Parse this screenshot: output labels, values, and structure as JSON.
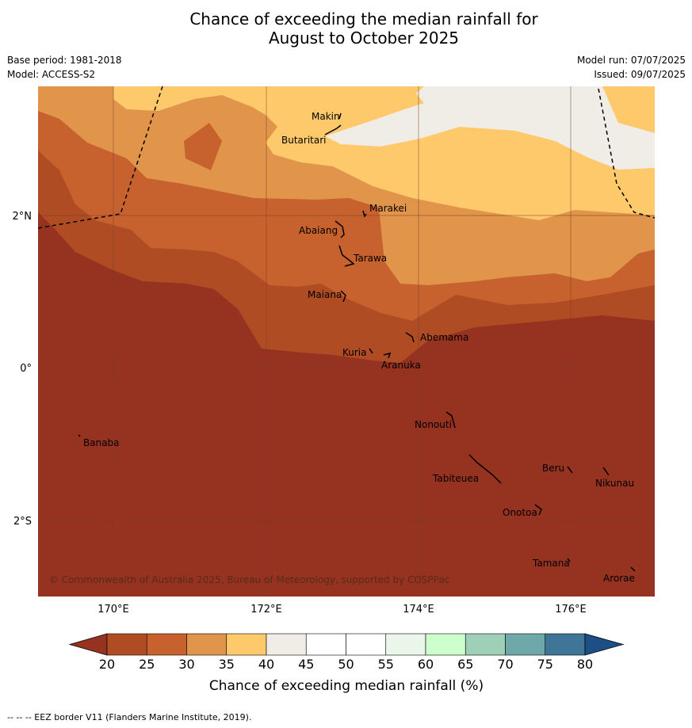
{
  "title_line1": "Chance of exceeding the median rainfall for",
  "title_line2": "August to October 2025",
  "meta_left": {
    "base_period": "Base period: 1981-2018",
    "model": "Model: ACCESS-S2"
  },
  "meta_right": {
    "model_run": "Model run: 07/07/2025",
    "issued": "Issued: 09/07/2025"
  },
  "axes": {
    "lat_labels": [
      "2°N",
      "0°",
      "2°S"
    ],
    "lon_labels": [
      "170°E",
      "172°E",
      "174°E",
      "176°E"
    ]
  },
  "places": [
    {
      "name": "Makin"
    },
    {
      "name": "Butaritari"
    },
    {
      "name": "Marakei"
    },
    {
      "name": "Abaiang"
    },
    {
      "name": "Tarawa"
    },
    {
      "name": "Maiana"
    },
    {
      "name": "Abemama"
    },
    {
      "name": "Kuria"
    },
    {
      "name": "Aranuka"
    },
    {
      "name": "Nonouti"
    },
    {
      "name": "Banaba"
    },
    {
      "name": "Beru"
    },
    {
      "name": "Nikunau"
    },
    {
      "name": "Tabiteuea"
    },
    {
      "name": "Onotoa"
    },
    {
      "name": "Tamana"
    },
    {
      "name": "Arorae"
    }
  ],
  "copyright": "© Commonwealth of Australia 2025, Bureau of Meteorology, supported by COSPPac",
  "colorbar": {
    "ticks": [
      "20",
      "25",
      "30",
      "35",
      "40",
      "45",
      "50",
      "55",
      "60",
      "65",
      "70",
      "75",
      "80"
    ],
    "colors": [
      "#b04c24",
      "#c7622f",
      "#e0954a",
      "#fec96a",
      "#f0ece6",
      "#ffffff",
      "#ffffff",
      "#eaf6e9",
      "#ccffcc",
      "#9dd0b7",
      "#6fa8a8",
      "#3f7698"
    ],
    "under_color": "#963220",
    "over_color": "#1d4f86",
    "label": "Chance of exceeding median rainfall (%)"
  },
  "footer": "--  --  -- EEZ border V11 (Flanders Marine Institute, 2019)."
}
